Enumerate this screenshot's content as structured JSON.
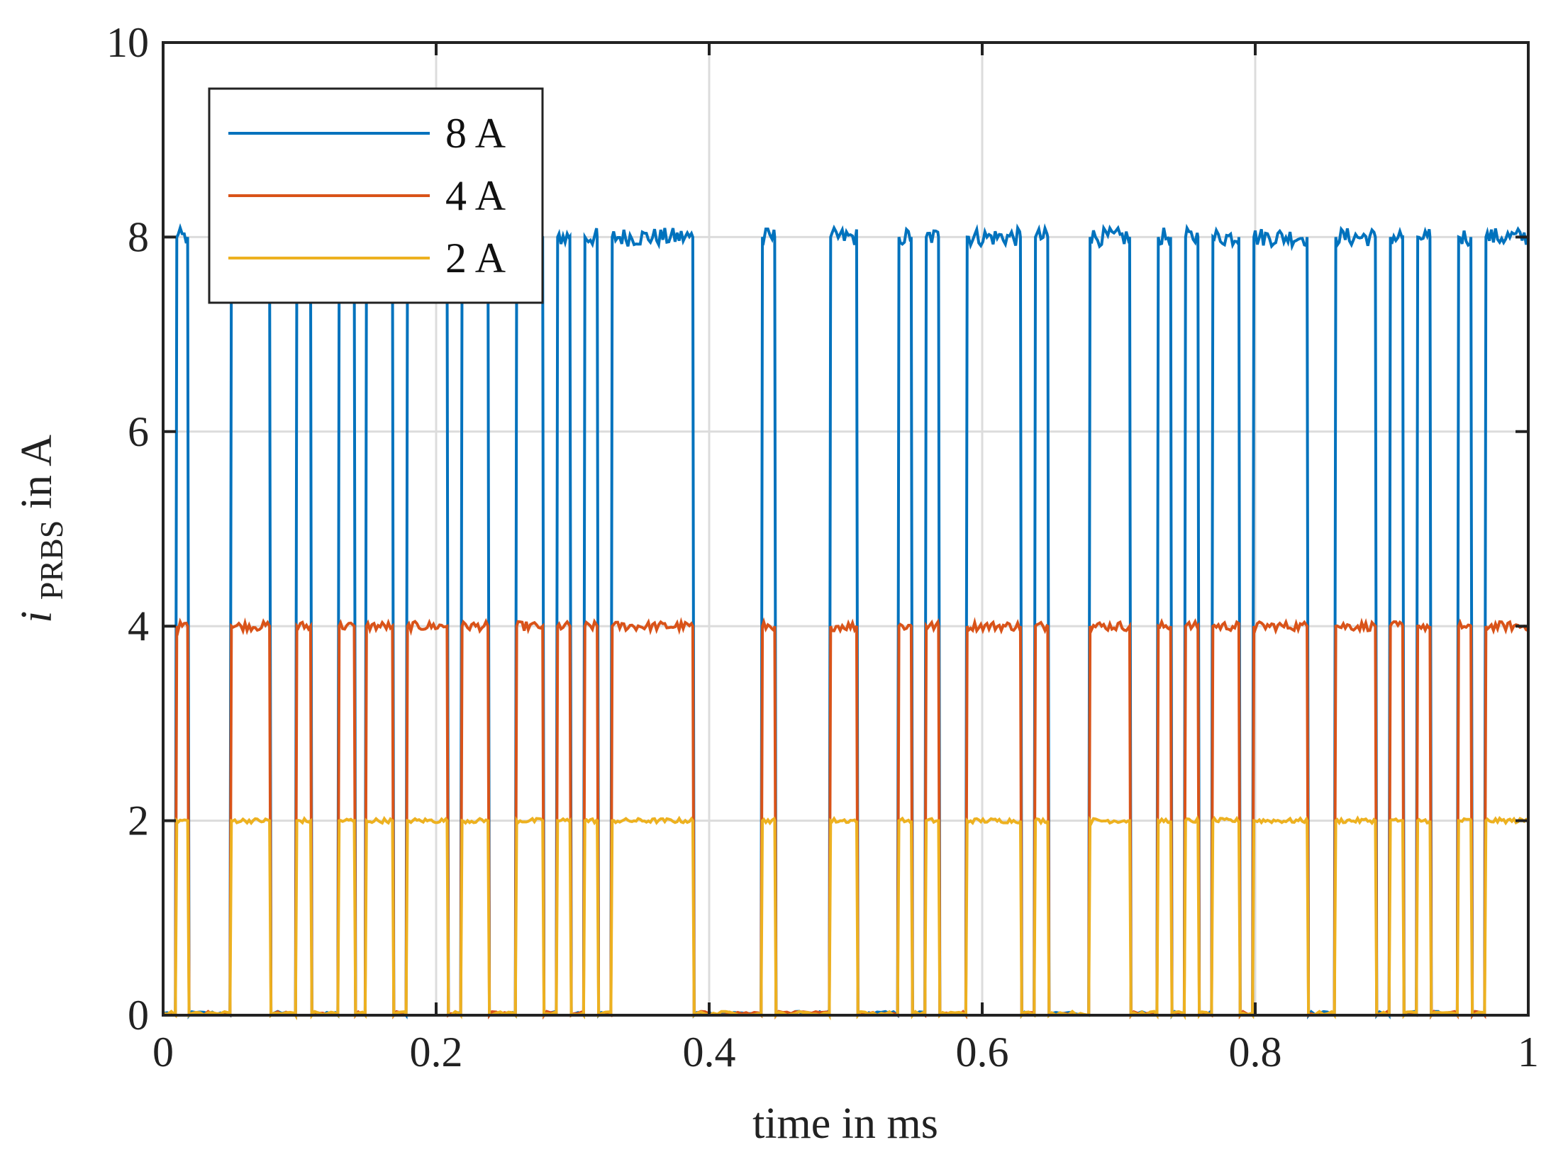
{
  "chart_data": {
    "type": "line",
    "title": "",
    "xlabel": "time in ms",
    "ylabel_main": "i",
    "ylabel_sub": "PRBS",
    "ylabel_suffix": " in A",
    "xlim": [
      0,
      1
    ],
    "ylim": [
      0,
      10
    ],
    "grid": true,
    "legend_position": "top-left",
    "x_ticks": [
      0,
      0.2,
      0.4,
      0.6,
      0.8,
      1
    ],
    "x_tick_labels": [
      "0",
      "0.2",
      "0.4",
      "0.6",
      "0.8",
      "1"
    ],
    "y_ticks": [
      0,
      2,
      4,
      6,
      8,
      10
    ],
    "y_tick_labels": [
      "0",
      "2",
      "4",
      "6",
      "8",
      "10"
    ],
    "prbs_high_intervals_ms": [
      [
        0.009,
        0.018
      ],
      [
        0.049,
        0.078
      ],
      [
        0.097,
        0.108
      ],
      [
        0.128,
        0.14
      ],
      [
        0.148,
        0.168
      ],
      [
        0.178,
        0.208
      ],
      [
        0.218,
        0.238
      ],
      [
        0.258,
        0.278
      ],
      [
        0.288,
        0.298
      ],
      [
        0.308,
        0.318
      ],
      [
        0.328,
        0.388
      ],
      [
        0.438,
        0.448
      ],
      [
        0.488,
        0.508
      ],
      [
        0.538,
        0.548
      ],
      [
        0.558,
        0.568
      ],
      [
        0.588,
        0.628
      ],
      [
        0.638,
        0.648
      ],
      [
        0.678,
        0.708
      ],
      [
        0.728,
        0.738
      ],
      [
        0.748,
        0.758
      ],
      [
        0.768,
        0.788
      ],
      [
        0.798,
        0.838
      ],
      [
        0.858,
        0.888
      ],
      [
        0.898,
        0.908
      ],
      [
        0.918,
        0.928
      ],
      [
        0.948,
        0.958
      ],
      [
        0.968,
        1.0
      ]
    ],
    "series": [
      {
        "name": "8 A",
        "high_level": 8,
        "low_level": 0,
        "color": "#0072bd"
      },
      {
        "name": "4 A",
        "high_level": 4,
        "low_level": 0,
        "color": "#d95319"
      },
      {
        "name": "2 A",
        "high_level": 2,
        "low_level": 0,
        "color": "#edb120"
      }
    ]
  }
}
